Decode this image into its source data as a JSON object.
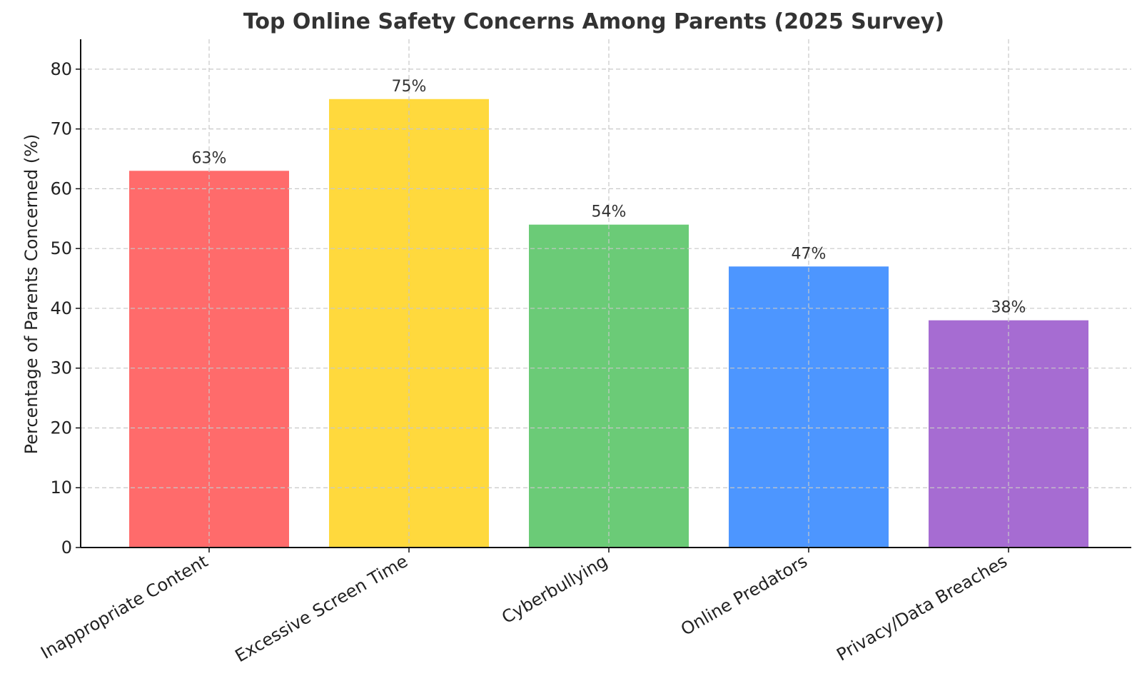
{
  "chart_data": {
    "type": "bar",
    "title": "Top Online Safety Concerns Among Parents (2025 Survey)",
    "xlabel": "",
    "ylabel": "Percentage of Parents Concerned (%)",
    "categories": [
      "Inappropriate Content",
      "Excessive Screen Time",
      "Cyberbullying",
      "Online Predators",
      "Privacy/Data Breaches"
    ],
    "values": [
      63,
      75,
      54,
      47,
      38
    ],
    "value_labels": [
      "63%",
      "75%",
      "54%",
      "47%",
      "38%"
    ],
    "colors": [
      "#ff6b6b",
      "#ffd93d",
      "#6bcb77",
      "#4d96ff",
      "#a66cd2"
    ],
    "ylim": [
      0,
      85
    ],
    "yticks": [
      0,
      10,
      20,
      30,
      40,
      50,
      60,
      70,
      80
    ],
    "grid": true,
    "legend": "none"
  }
}
